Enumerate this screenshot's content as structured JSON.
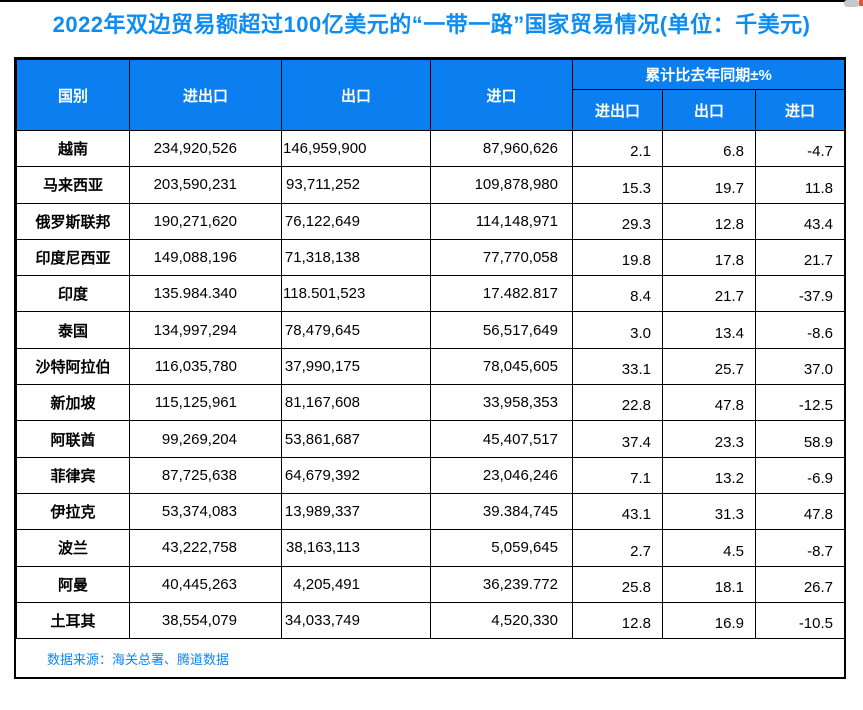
{
  "title": "2022年双边贸易额超过100亿美元的“一带一路”国家贸易情况(单位：千美元)",
  "colors": {
    "title_blue": "#0d8cf2",
    "header_bg_blue": "#0b7ff0",
    "header_text": "#ffffff",
    "border_black": "#000000",
    "source_text_blue": "#1086f0"
  },
  "chart_data": {
    "type": "table",
    "title": "2022年双边贸易额超过100亿美元的“一带一路”国家贸易情况(单位：千美元)",
    "headers": {
      "country": "国别",
      "total": "进出口",
      "export": "出口",
      "import": "进口",
      "yoy_group": "累计比去年同期±%",
      "yoy_total": "进出口",
      "yoy_export": "出口",
      "yoy_import": "进口"
    },
    "rows": [
      {
        "country": "越南",
        "total": "234,920,526",
        "export": "146,959,900",
        "import": "87,960,626",
        "yoy_total": "2.1",
        "yoy_export": "6.8",
        "yoy_import": "-4.7"
      },
      {
        "country": "马来西亚",
        "total": "203,590,231",
        "export": "93,711,252",
        "import": "109,878,980",
        "yoy_total": "15.3",
        "yoy_export": "19.7",
        "yoy_import": "11.8"
      },
      {
        "country": "俄罗斯联邦",
        "total": "190,271,620",
        "export": "76,122,649",
        "import": "114,148,971",
        "yoy_total": "29.3",
        "yoy_export": "12.8",
        "yoy_import": "43.4"
      },
      {
        "country": "印度尼西亚",
        "total": "149,088,196",
        "export": "71,318,138",
        "import": "77,770,058",
        "yoy_total": "19.8",
        "yoy_export": "17.8",
        "yoy_import": "21.7"
      },
      {
        "country": "印度",
        "total": "135.984.340",
        "export": "118.501,523",
        "import": "17.482.817",
        "yoy_total": "8.4",
        "yoy_export": "21.7",
        "yoy_import": "-37.9"
      },
      {
        "country": "泰国",
        "total": "134,997,294",
        "export": "78,479,645",
        "import": "56,517,649",
        "yoy_total": "3.0",
        "yoy_export": "13.4",
        "yoy_import": "-8.6"
      },
      {
        "country": "沙特阿拉伯",
        "total": "116,035,780",
        "export": "37,990,175",
        "import": "78,045,605",
        "yoy_total": "33.1",
        "yoy_export": "25.7",
        "yoy_import": "37.0"
      },
      {
        "country": "新加坡",
        "total": "115,125,961",
        "export": "81,167,608",
        "import": "33,958,353",
        "yoy_total": "22.8",
        "yoy_export": "47.8",
        "yoy_import": "-12.5"
      },
      {
        "country": "阿联酋",
        "total": "99,269,204",
        "export": "53,861,687",
        "import": "45,407,517",
        "yoy_total": "37.4",
        "yoy_export": "23.3",
        "yoy_import": "58.9"
      },
      {
        "country": "菲律宾",
        "total": "87,725,638",
        "export": "64,679,392",
        "import": "23,046,246",
        "yoy_total": "7.1",
        "yoy_export": "13.2",
        "yoy_import": "-6.9"
      },
      {
        "country": "伊拉克",
        "total": "53,374,083",
        "export": "13,989,337",
        "import": "39.384,745",
        "yoy_total": "43.1",
        "yoy_export": "31.3",
        "yoy_import": "47.8"
      },
      {
        "country": "波兰",
        "total": "43,222,758",
        "export": "38,163,113",
        "import": "5,059,645",
        "yoy_total": "2.7",
        "yoy_export": "4.5",
        "yoy_import": "-8.7"
      },
      {
        "country": "阿曼",
        "total": "40,445,263",
        "export": "4,205,491",
        "import": "36,239.772",
        "yoy_total": "25.8",
        "yoy_export": "18.1",
        "yoy_import": "26.7"
      },
      {
        "country": "土耳其",
        "total": "38,554,079",
        "export": "34,033,749",
        "import": "4,520,330",
        "yoy_total": "12.8",
        "yoy_export": "16.9",
        "yoy_import": "-10.5"
      }
    ],
    "source": "数据来源：海关总署、腾道数据"
  }
}
